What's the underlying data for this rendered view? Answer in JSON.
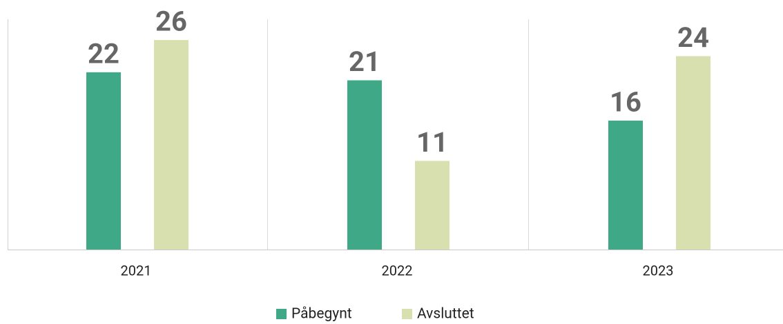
{
  "chart_data": {
    "type": "bar",
    "categories": [
      "2021",
      "2022",
      "2023"
    ],
    "series": [
      {
        "name": "Påbegynt",
        "color": "#3fa886",
        "values": [
          22,
          21,
          16
        ]
      },
      {
        "name": "Avsluttet",
        "color": "#d9e0b0",
        "values": [
          26,
          11,
          24
        ]
      }
    ],
    "legend": "bottom"
  }
}
